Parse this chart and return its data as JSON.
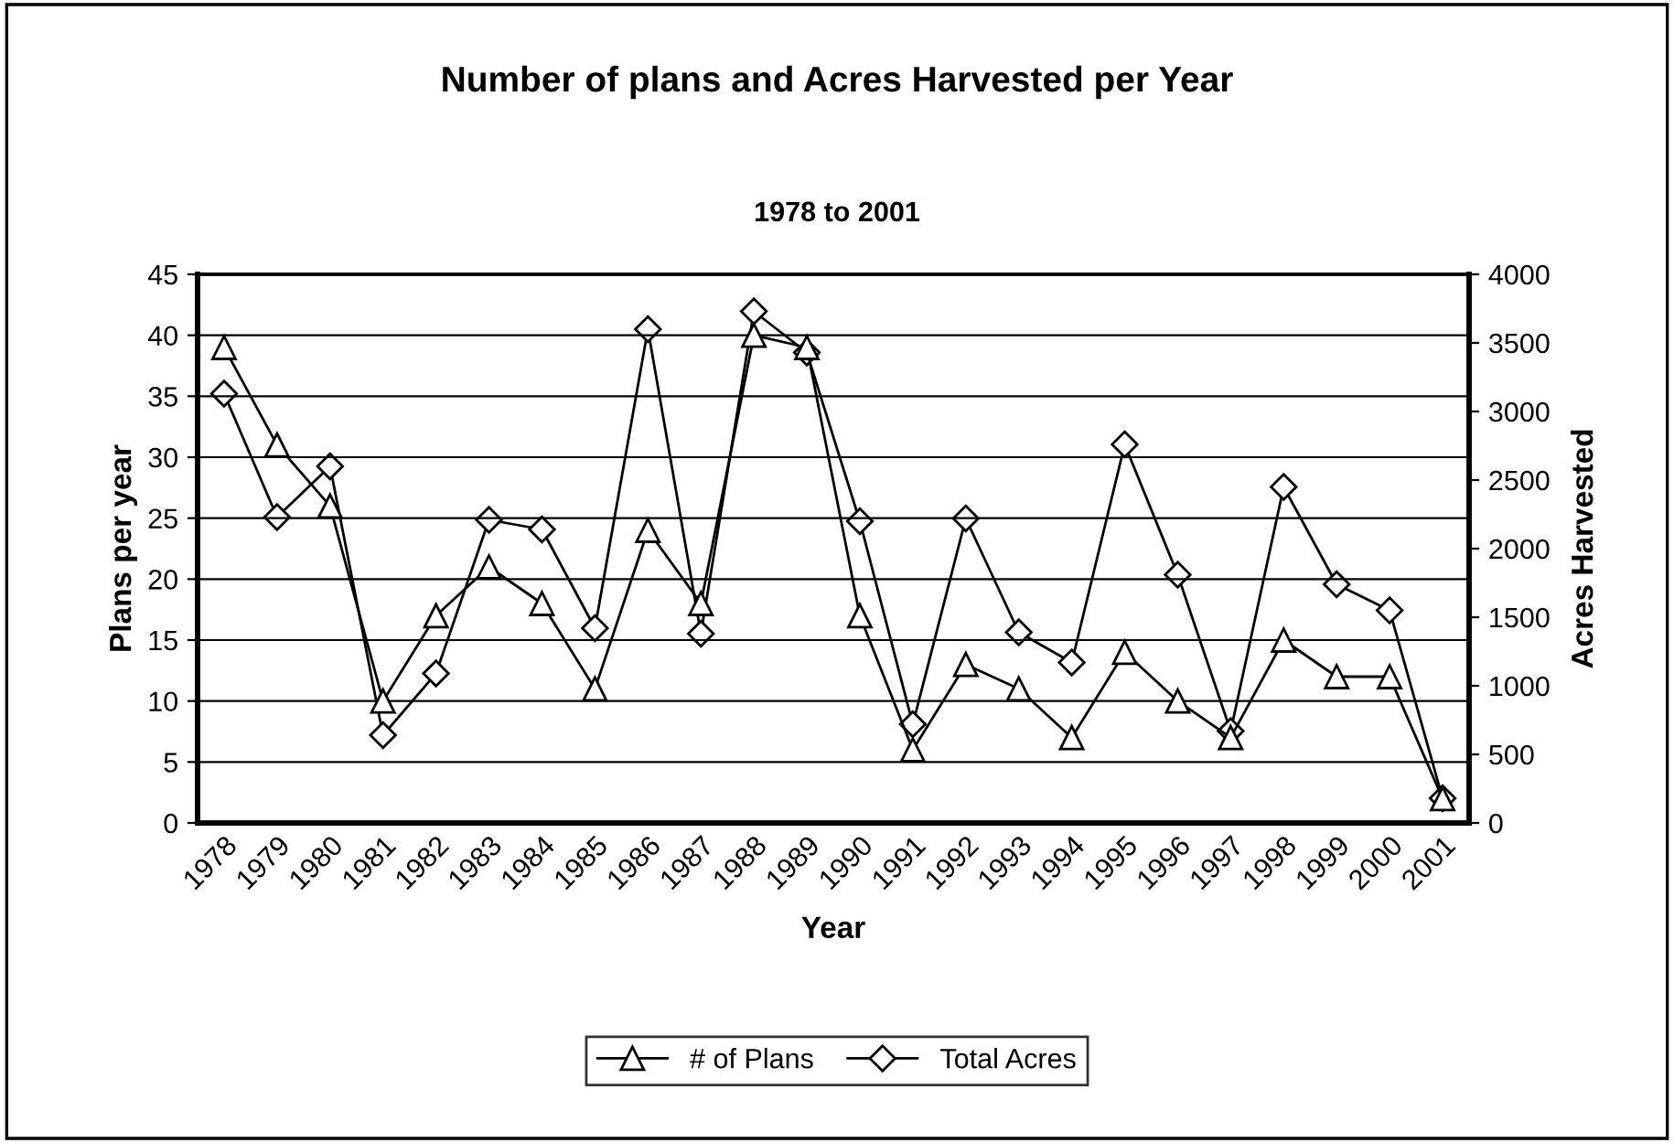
{
  "chart_data": {
    "type": "line",
    "title": "Number of plans and Acres Harvested per Year",
    "subtitle": "1978 to 2001",
    "xlabel": "Year",
    "ylabel": "Plans per year",
    "y2label": "Acres Harvested",
    "categories": [
      "1978",
      "1979",
      "1980",
      "1981",
      "1982",
      "1983",
      "1984",
      "1985",
      "1986",
      "1987",
      "1988",
      "1989",
      "1990",
      "1991",
      "1992",
      "1993",
      "1994",
      "1995",
      "1996",
      "1997",
      "1998",
      "1999",
      "2000",
      "2001"
    ],
    "series": [
      {
        "name": "# of Plans",
        "color": "#000000",
        "marker": "triangle",
        "values": [
          39,
          31,
          26,
          10,
          17,
          21,
          18,
          11,
          24,
          18,
          40,
          39,
          17,
          6,
          13,
          11,
          7,
          14,
          10,
          7,
          15,
          12,
          12,
          2
        ]
      },
      {
        "name": "Total Acres",
        "color": "#000000",
        "marker": "diamond",
        "axis": "y2",
        "values": [
          3130,
          2230,
          2600,
          640,
          1090,
          2210,
          2140,
          1420,
          3600,
          1380,
          3730,
          3430,
          2200,
          720,
          2220,
          1390,
          1170,
          2760,
          1810,
          670,
          2450,
          1740,
          1550,
          180
        ]
      }
    ],
    "ylim": [
      0,
      45
    ],
    "yticks": [
      0,
      5,
      10,
      15,
      20,
      25,
      30,
      35,
      40,
      45
    ],
    "y2lim": [
      0,
      4000
    ],
    "y2ticks": [
      0,
      500,
      1000,
      1500,
      2000,
      2500,
      3000,
      3500,
      4000
    ],
    "grid": "y",
    "legend": "bottom",
    "line_style": "solid"
  }
}
